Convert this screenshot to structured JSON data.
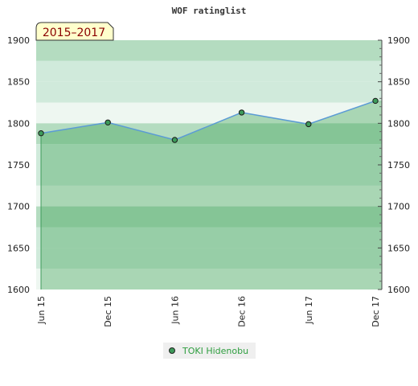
{
  "colors": {
    "band_light": "#b4dcc0",
    "band_lighter": "#d0eadb",
    "band_lightest": "#eef7f1",
    "area_fill": "#3aa052",
    "line": "#5b9bd5",
    "marker": "#3d9a5a",
    "period_bg": "#ffffcc",
    "period_text": "#8b0000",
    "legend_text": "#2e9e3f",
    "legend_bg": "#efefef"
  },
  "chart_data": {
    "type": "area",
    "title": "WOF ratinglist",
    "period_label": "2015–2017",
    "categories": [
      "Jun 15",
      "Dec 15",
      "Jun 16",
      "Dec 16",
      "Jun 17",
      "Dec 17"
    ],
    "series": [
      {
        "name": "TOKI Hidenobu",
        "values": [
          1788,
          1801,
          1780,
          1813,
          1799,
          1827
        ]
      }
    ],
    "ylim": [
      1600,
      1900
    ],
    "yticks": [
      1600,
      1650,
      1700,
      1750,
      1800,
      1850,
      1900
    ],
    "grid": true,
    "legend_position": "bottom-center"
  }
}
